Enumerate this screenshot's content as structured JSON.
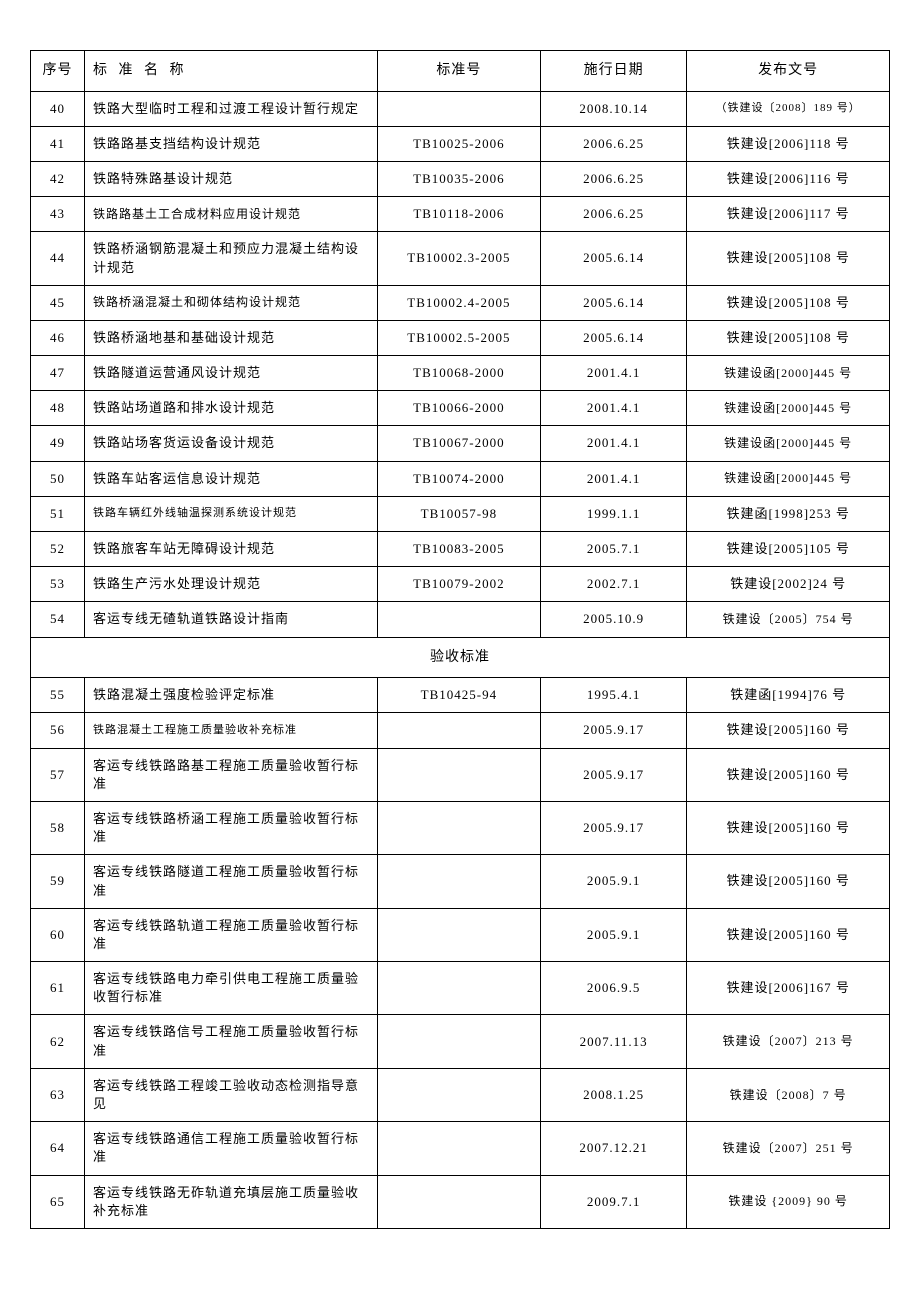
{
  "headers": {
    "seq": "序号",
    "name": "标 准 名 称",
    "std": "标准号",
    "date": "施行日期",
    "docno": "发布文号"
  },
  "section_header": "验收标准",
  "rows1": [
    {
      "seq": "40",
      "name": "铁路大型临时工程和过渡工程设计暂行规定",
      "std": "",
      "date": "2008.10.14",
      "docno": "（铁建设〔2008〕189 号）",
      "docno_class": "small-font"
    },
    {
      "seq": "41",
      "name": "铁路路基支挡结构设计规范",
      "std": "TB10025-2006",
      "date": "2006.6.25",
      "docno": "铁建设[2006]118 号"
    },
    {
      "seq": "42",
      "name": "铁路特殊路基设计规范",
      "std": "TB10035-2006",
      "date": "2006.6.25",
      "docno": "铁建设[2006]116 号"
    },
    {
      "seq": "43",
      "name": "铁路路基土工合成材料应用设计规范",
      "std": "TB10118-2006",
      "date": "2006.6.25",
      "docno": "铁建设[2006]117 号",
      "name_class": "smaller-font"
    },
    {
      "seq": "44",
      "name": "铁路桥涵钢筋混凝土和预应力混凝土结构设计规范",
      "std": "TB10002.3-2005",
      "date": "2005.6.14",
      "docno": "铁建设[2005]108 号"
    },
    {
      "seq": "45",
      "name": "铁路桥涵混凝土和砌体结构设计规范",
      "std": "TB10002.4-2005",
      "date": "2005.6.14",
      "docno": "铁建设[2005]108 号",
      "name_class": "smaller-font"
    },
    {
      "seq": "46",
      "name": "铁路桥涵地基和基础设计规范",
      "std": "TB10002.5-2005",
      "date": "2005.6.14",
      "docno": "铁建设[2005]108 号"
    },
    {
      "seq": "47",
      "name": "铁路隧道运营通风设计规范",
      "std": "TB10068-2000",
      "date": "2001.4.1",
      "docno": "铁建设函[2000]445 号",
      "docno_class": "smaller-font"
    },
    {
      "seq": "48",
      "name": "铁路站场道路和排水设计规范",
      "std": "TB10066-2000",
      "date": "2001.4.1",
      "docno": "铁建设函[2000]445 号",
      "docno_class": "smaller-font"
    },
    {
      "seq": "49",
      "name": "铁路站场客货运设备设计规范",
      "std": "TB10067-2000",
      "date": "2001.4.1",
      "docno": "铁建设函[2000]445 号",
      "docno_class": "smaller-font"
    },
    {
      "seq": "50",
      "name": "铁路车站客运信息设计规范",
      "std": "TB10074-2000",
      "date": "2001.4.1",
      "docno": "铁建设函[2000]445 号",
      "docno_class": "smaller-font"
    },
    {
      "seq": "51",
      "name": "铁路车辆红外线轴温探测系统设计规范",
      "std": "TB10057-98",
      "date": "1999.1.1",
      "docno": "铁建函[1998]253 号",
      "name_class": "small-font"
    },
    {
      "seq": "52",
      "name": "铁路旅客车站无障碍设计规范",
      "std": "TB10083-2005",
      "date": "2005.7.1",
      "docno": "铁建设[2005]105 号"
    },
    {
      "seq": "53",
      "name": "铁路生产污水处理设计规范",
      "std": "TB10079-2002",
      "date": "2002.7.1",
      "docno": "铁建设[2002]24 号"
    },
    {
      "seq": "54",
      "name": "客运专线无碴轨道铁路设计指南",
      "std": "",
      "date": "2005.10.9",
      "docno": "铁建设〔2005〕754 号",
      "docno_class": "smaller-font"
    }
  ],
  "rows2": [
    {
      "seq": "55",
      "name": "铁路混凝土强度检验评定标准",
      "std": "TB10425-94",
      "date": "1995.4.1",
      "docno": "铁建函[1994]76 号"
    },
    {
      "seq": "56",
      "name": "铁路混凝土工程施工质量验收补充标准",
      "std": "",
      "date": "2005.9.17",
      "docno": "铁建设[2005]160 号",
      "name_class": "small-font"
    },
    {
      "seq": "57",
      "name": "客运专线铁路路基工程施工质量验收暂行标准",
      "std": "",
      "date": "2005.9.17",
      "docno": "铁建设[2005]160 号"
    },
    {
      "seq": "58",
      "name": "客运专线铁路桥涵工程施工质量验收暂行标准",
      "std": "",
      "date": "2005.9.17",
      "docno": "铁建设[2005]160 号"
    },
    {
      "seq": "59",
      "name": "客运专线铁路隧道工程施工质量验收暂行标准",
      "std": "",
      "date": "2005.9.1",
      "docno": "铁建设[2005]160 号"
    },
    {
      "seq": "60",
      "name": "客运专线铁路轨道工程施工质量验收暂行标准",
      "std": "",
      "date": "2005.9.1",
      "docno": "铁建设[2005]160 号"
    },
    {
      "seq": "61",
      "name": "客运专线铁路电力牵引供电工程施工质量验收暂行标准",
      "std": "",
      "date": "2006.9.5",
      "docno": "铁建设[2006]167 号"
    },
    {
      "seq": "62",
      "name": "客运专线铁路信号工程施工质量验收暂行标准",
      "std": "",
      "date": "2007.11.13",
      "docno": "铁建设〔2007〕213 号",
      "docno_class": "smaller-font"
    },
    {
      "seq": "63",
      "name": "客运专线铁路工程竣工验收动态检测指导意见",
      "std": "",
      "date": "2008.1.25",
      "docno": "铁建设〔2008〕7 号",
      "docno_class": "smaller-font"
    },
    {
      "seq": "64",
      "name": "客运专线铁路通信工程施工质量验收暂行标准",
      "std": "",
      "date": "2007.12.21",
      "docno": "铁建设〔2007〕251 号",
      "docno_class": "smaller-font"
    },
    {
      "seq": "65",
      "name": "客运专线铁路无砟轨道充填层施工质量验收补充标准",
      "std": "",
      "date": "2009.7.1",
      "docno": "铁建设 {2009} 90 号",
      "docno_class": "smaller-font"
    }
  ]
}
